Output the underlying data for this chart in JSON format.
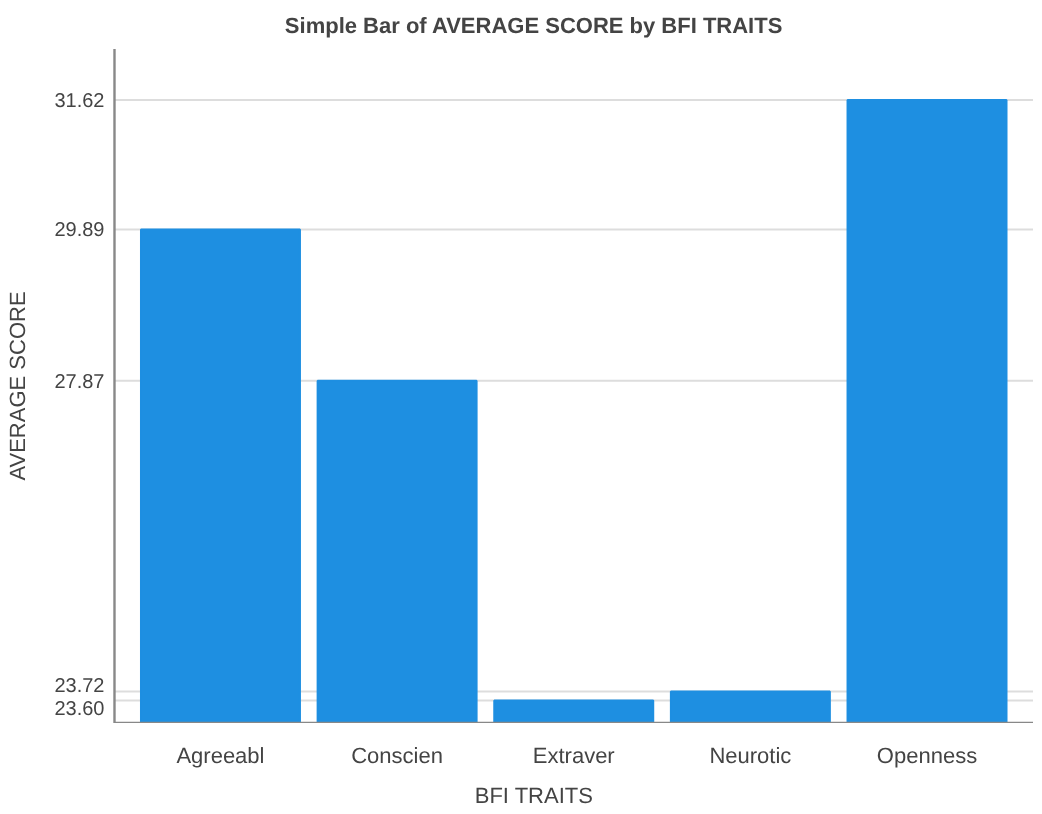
{
  "chart_data": {
    "type": "bar",
    "title": "Simple Bar of AVERAGE SCORE by BFI TRAITS",
    "xlabel": "BFI TRAITS",
    "ylabel": "AVERAGE SCORE",
    "categories": [
      "Agreeabl",
      "Conscien",
      "Extraver",
      "Neurotic",
      "Openness"
    ],
    "values": [
      29.89,
      27.87,
      23.6,
      23.72,
      31.62
    ],
    "color": "#1e8fe1",
    "ylim": [
      23.3,
      32.3
    ],
    "yticks": [
      {
        "value": 23.6,
        "label": "23.60"
      },
      {
        "value": 23.72,
        "label": "23.72"
      },
      {
        "value": 27.87,
        "label": "27.87"
      },
      {
        "value": 29.89,
        "label": "29.89"
      },
      {
        "value": 31.62,
        "label": "31.62"
      }
    ],
    "grid": "y"
  }
}
